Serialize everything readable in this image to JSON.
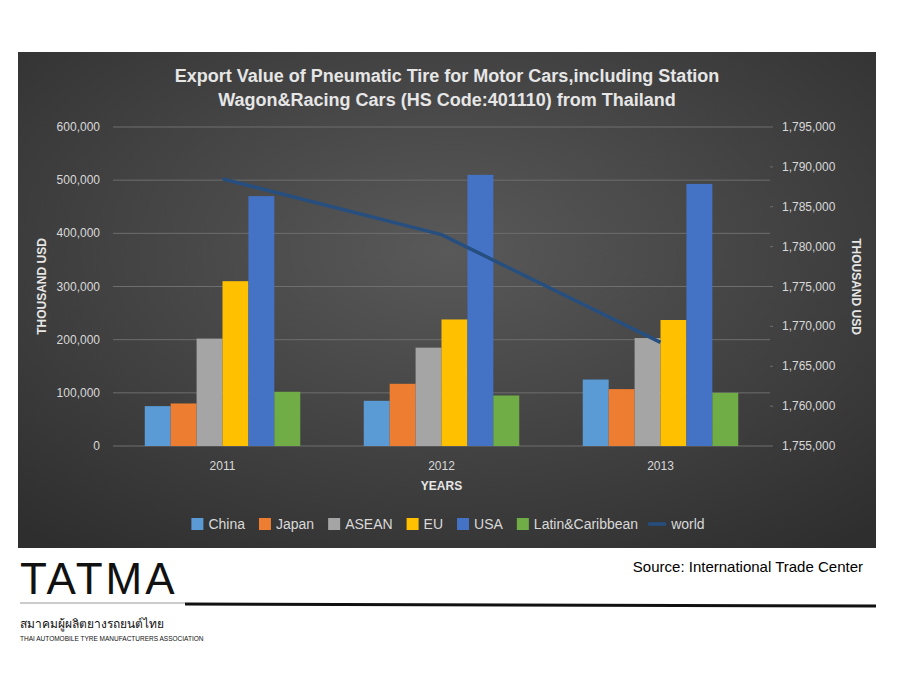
{
  "chart_data": {
    "type": "bar",
    "title": [
      "Export Value of Pneumatic Tire for Motor Cars,including Station",
      "Wagon&Racing Cars (HS Code:401110) from Thailand"
    ],
    "x_label": "YEARS",
    "y_label": "THOUSAND USD",
    "y2_label": "THOUSAND USD",
    "categories": [
      "2011",
      "2012",
      "2013"
    ],
    "series": [
      {
        "name": "China",
        "color": "#5b9bd5",
        "values": [
          75000,
          85000,
          125000
        ]
      },
      {
        "name": "Japan",
        "color": "#ed7d31",
        "values": [
          80000,
          117000,
          107000
        ]
      },
      {
        "name": "ASEAN",
        "color": "#a5a5a5",
        "values": [
          202000,
          185000,
          203000
        ]
      },
      {
        "name": "EU",
        "color": "#ffc000",
        "values": [
          310000,
          238000,
          237000
        ]
      },
      {
        "name": "USA",
        "color": "#4472c4",
        "values": [
          470000,
          510000,
          493000
        ]
      },
      {
        "name": "Latin&Caribbean",
        "color": "#70ad47",
        "values": [
          102000,
          95000,
          100000
        ]
      },
      {
        "name": "world",
        "color": "#264f80",
        "type": "line",
        "axis": "y2",
        "values": [
          1788500,
          1781500,
          1768000
        ]
      }
    ],
    "ylim": [
      0,
      600000
    ],
    "yticks": [
      0,
      {
        "value": 100000,
        "label": "100,000"
      },
      {
        "value": 200000,
        "label": "200,000"
      },
      {
        "value": 300000,
        "label": "300,000"
      },
      {
        "value": 400000,
        "label": "400,000"
      },
      {
        "value": 500000,
        "label": "500,000"
      },
      {
        "value": 600000,
        "label": "600,000"
      }
    ],
    "y2lim": [
      1755000,
      1795000
    ],
    "y2ticks": [
      {
        "value": 1755000,
        "label": "1,755,000"
      },
      {
        "value": 1760000,
        "label": "1,760,000"
      },
      {
        "value": 1765000,
        "label": "1,765,000"
      },
      {
        "value": 1770000,
        "label": "1,770,000"
      },
      {
        "value": 1775000,
        "label": "1,775,000"
      },
      {
        "value": 1780000,
        "label": "1,780,000"
      },
      {
        "value": 1785000,
        "label": "1,785,000"
      },
      {
        "value": 1790000,
        "label": "1,790,000"
      },
      {
        "value": 1795000,
        "label": "1,795,000"
      }
    ],
    "grid": true,
    "legend": "bottom",
    "source": "Source: International Trade Center",
    "logo": {
      "name": "TATMA",
      "thai": "สมาคมผู้ผลิตยางรถยนต์ไทย",
      "english": "THAI AUTOMOBILE TYRE MANUFACTURERS ASSOCIATION"
    }
  }
}
